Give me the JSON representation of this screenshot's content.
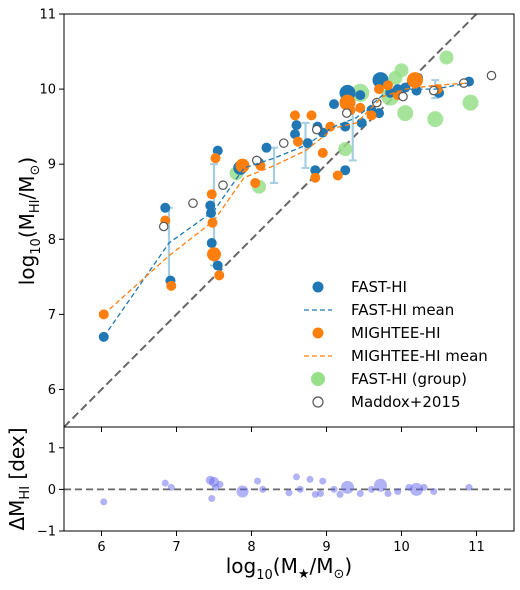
{
  "chart_data": [
    {
      "type": "scatter",
      "title": "",
      "xlim": [
        5.5,
        11.5
      ],
      "ylim": [
        5.5,
        11
      ],
      "xticks": [
        "6",
        "7",
        "8",
        "9",
        "10",
        "11"
      ],
      "yticks": [
        "6",
        "7",
        "8",
        "9",
        "10",
        "11"
      ],
      "ylabel": "log10(M_HI/M_⊙)",
      "ylabel_parts": {
        "main": "log",
        "sub": "10",
        "open": "(M",
        "hi": "HI",
        "slash": "/M",
        "sun": "⊙",
        "close": ")"
      },
      "legend_position": "lower-right",
      "grid": false,
      "legend": [
        {
          "label": "FAST-HI",
          "kind": "marker",
          "color": "#1f77b4"
        },
        {
          "label": "FAST-HI mean",
          "kind": "dashed-line",
          "color": "#1f77b4"
        },
        {
          "label": "MIGHTEE-HI",
          "kind": "marker",
          "color": "#ff7f0e"
        },
        {
          "label": "MIGHTEE-HI mean",
          "kind": "dashed-line",
          "color": "#ff7f0e"
        },
        {
          "label": "FAST-HI (group)",
          "kind": "marker",
          "color": "#98df8a"
        },
        {
          "label": "Maddox+2015",
          "kind": "open-marker",
          "color": "#555555"
        }
      ],
      "one_to_one_line": {
        "x": [
          5.5,
          11.5
        ],
        "y": [
          5.5,
          11.5
        ],
        "color": "#666666"
      },
      "series": [
        {
          "name": "FAST-HI",
          "color": "#1f77b4",
          "points": [
            [
              6.03,
              6.7,
              5
            ],
            [
              6.85,
              8.42,
              5
            ],
            [
              6.92,
              7.45,
              5
            ],
            [
              7.45,
              8.45,
              5
            ],
            [
              7.46,
              8.35,
              5
            ],
            [
              7.47,
              7.95,
              5
            ],
            [
              7.55,
              9.18,
              5
            ],
            [
              7.55,
              7.65,
              5
            ],
            [
              7.85,
              8.95,
              7
            ],
            [
              8.1,
              9.02,
              5
            ],
            [
              8.2,
              9.22,
              5
            ],
            [
              8.58,
              9.4,
              5
            ],
            [
              8.6,
              9.52,
              5
            ],
            [
              8.75,
              9.28,
              5
            ],
            [
              8.85,
              8.92,
              5
            ],
            [
              8.88,
              9.5,
              5
            ],
            [
              8.95,
              9.42,
              5
            ],
            [
              9.1,
              9.8,
              5
            ],
            [
              9.25,
              9.5,
              5
            ],
            [
              9.25,
              8.92,
              5
            ],
            [
              9.28,
              9.95,
              8
            ],
            [
              9.45,
              9.92,
              5
            ],
            [
              9.47,
              9.55,
              5
            ],
            [
              9.6,
              9.72,
              5
            ],
            [
              9.7,
              9.68,
              5
            ],
            [
              9.72,
              10.12,
              8
            ],
            [
              9.85,
              9.95,
              5
            ],
            [
              9.95,
              10.0,
              5
            ],
            [
              10.05,
              10.02,
              5
            ],
            [
              10.2,
              9.98,
              5
            ],
            [
              10.22,
              10.15,
              5
            ],
            [
              10.5,
              9.95,
              5
            ],
            [
              10.9,
              10.1,
              5
            ]
          ]
        },
        {
          "name": "MIGHTEE-HI",
          "color": "#ff7f0e",
          "points": [
            [
              6.03,
              7.0,
              5
            ],
            [
              6.85,
              8.25,
              5
            ],
            [
              6.93,
              7.38,
              5
            ],
            [
              7.47,
              8.6,
              5
            ],
            [
              7.48,
              8.22,
              5
            ],
            [
              7.5,
              7.8,
              7
            ],
            [
              7.52,
              9.08,
              5
            ],
            [
              7.57,
              7.52,
              5
            ],
            [
              7.88,
              8.98,
              7
            ],
            [
              8.05,
              8.75,
              5
            ],
            [
              8.12,
              8.98,
              5
            ],
            [
              8.58,
              9.65,
              5
            ],
            [
              8.62,
              9.3,
              5
            ],
            [
              8.8,
              9.65,
              5
            ],
            [
              8.85,
              8.82,
              5
            ],
            [
              8.95,
              9.15,
              5
            ],
            [
              9.05,
              9.5,
              5
            ],
            [
              9.15,
              8.85,
              5
            ],
            [
              9.28,
              9.82,
              8
            ],
            [
              9.32,
              9.72,
              5
            ],
            [
              9.45,
              9.75,
              5
            ],
            [
              9.6,
              9.65,
              5
            ],
            [
              9.7,
              10.0,
              5
            ],
            [
              9.82,
              10.05,
              5
            ],
            [
              9.95,
              9.92,
              5
            ],
            [
              10.18,
              10.12,
              8
            ],
            [
              10.48,
              10.0,
              5
            ]
          ]
        },
        {
          "name": "FAST-HI (group)",
          "color": "#98df8a",
          "points": [
            [
              7.8,
              8.88,
              7
            ],
            [
              8.1,
              8.7,
              7
            ],
            [
              9.25,
              9.2,
              7
            ],
            [
              9.45,
              9.95,
              9
            ],
            [
              9.85,
              9.9,
              9
            ],
            [
              9.92,
              10.15,
              7
            ],
            [
              10.0,
              10.25,
              7
            ],
            [
              10.05,
              9.68,
              8
            ],
            [
              10.45,
              9.6,
              8
            ],
            [
              10.6,
              10.42,
              7
            ],
            [
              10.92,
              9.82,
              8
            ]
          ]
        },
        {
          "name": "Maddox+2015",
          "color": "#555555",
          "points": [
            [
              6.83,
              8.17
            ],
            [
              7.22,
              8.48
            ],
            [
              7.62,
              8.72
            ],
            [
              8.07,
              9.05
            ],
            [
              8.43,
              9.28
            ],
            [
              8.87,
              9.46
            ],
            [
              9.27,
              9.68
            ],
            [
              9.67,
              9.82
            ],
            [
              10.02,
              9.9
            ],
            [
              10.43,
              9.98
            ],
            [
              10.83,
              10.08
            ],
            [
              11.2,
              10.18
            ]
          ]
        }
      ],
      "mean_lines": [
        {
          "name": "FAST-HI mean",
          "color": "#1f77b4",
          "x": [
            6.03,
            6.9,
            7.5,
            7.9,
            8.3,
            8.72,
            9.1,
            9.4,
            9.75,
            10.05,
            10.45,
            10.88
          ],
          "y": [
            6.7,
            7.95,
            8.38,
            8.95,
            9.08,
            9.25,
            9.5,
            9.62,
            9.92,
            10.0,
            10.0,
            10.08
          ]
        },
        {
          "name": "MIGHTEE-HI mean",
          "color": "#ff7f0e",
          "x": [
            6.03,
            6.9,
            7.5,
            7.9,
            8.3,
            8.72,
            9.1,
            9.4,
            9.75,
            10.05,
            10.45,
            10.88
          ],
          "y": [
            7.0,
            7.78,
            8.25,
            8.82,
            8.98,
            9.18,
            9.48,
            9.55,
            9.9,
            10.0,
            10.05,
            10.08
          ]
        }
      ],
      "error_bars": [
        {
          "x": 6.9,
          "low": 7.45,
          "high": 8.42
        },
        {
          "x": 7.5,
          "low": 7.65,
          "high": 9.0
        },
        {
          "x": 8.3,
          "low": 8.75,
          "high": 9.22
        },
        {
          "x": 8.72,
          "low": 8.95,
          "high": 9.55
        },
        {
          "x": 9.35,
          "low": 9.05,
          "high": 9.72
        },
        {
          "x": 10.45,
          "low": 9.88,
          "high": 10.12
        }
      ]
    },
    {
      "type": "scatter",
      "title": "",
      "xlim": [
        5.5,
        11.5
      ],
      "ylim": [
        -1,
        1.5
      ],
      "xticks": [
        "6",
        "7",
        "8",
        "9",
        "10",
        "11"
      ],
      "yticks": [
        "−1",
        "0",
        "1"
      ],
      "xlabel": "log10(M_★/M_⊙)",
      "xlabel_parts": {
        "main": "log",
        "sub": "10",
        "open": "(M",
        "star": "★",
        "slash": "/M",
        "sun": "⊙",
        "close": ")"
      },
      "ylabel": "ΔM_HI [dex]",
      "ylabel_parts": {
        "delta": "ΔM",
        "hi": "HI",
        "rest": " [dex]"
      },
      "zero_line": {
        "y": 0,
        "color": "#666666"
      },
      "series": [
        {
          "name": "residuals",
          "color": "#6666ee",
          "points": [
            [
              6.03,
              -0.3,
              3.5
            ],
            [
              6.85,
              0.15,
              3.5
            ],
            [
              6.93,
              0.05,
              3.5
            ],
            [
              7.45,
              0.22,
              4.5
            ],
            [
              7.47,
              -0.22,
              3.5
            ],
            [
              7.5,
              0.18,
              5
            ],
            [
              7.52,
              0.05,
              3.5
            ],
            [
              7.58,
              0.12,
              3.5
            ],
            [
              7.88,
              -0.05,
              6
            ],
            [
              8.08,
              0.2,
              3.5
            ],
            [
              8.15,
              0.0,
              3.5
            ],
            [
              8.5,
              -0.08,
              3.5
            ],
            [
              8.6,
              0.3,
              3.5
            ],
            [
              8.65,
              0.0,
              3.5
            ],
            [
              8.78,
              0.24,
              3.5
            ],
            [
              8.85,
              -0.12,
              3.5
            ],
            [
              8.92,
              -0.1,
              3.5
            ],
            [
              8.95,
              0.2,
              3.5
            ],
            [
              9.1,
              0.0,
              3.5
            ],
            [
              9.18,
              -0.12,
              3.5
            ],
            [
              9.28,
              0.05,
              6.5
            ],
            [
              9.45,
              -0.1,
              3.5
            ],
            [
              9.6,
              0.0,
              3.5
            ],
            [
              9.72,
              0.1,
              6.5
            ],
            [
              9.82,
              -0.1,
              3.5
            ],
            [
              9.95,
              -0.05,
              3.5
            ],
            [
              10.1,
              0.05,
              3.5
            ],
            [
              10.2,
              0.0,
              6.5
            ],
            [
              10.3,
              0.05,
              3.5
            ],
            [
              10.43,
              -0.05,
              3.5
            ],
            [
              10.9,
              0.05,
              3.5
            ]
          ]
        }
      ]
    }
  ]
}
